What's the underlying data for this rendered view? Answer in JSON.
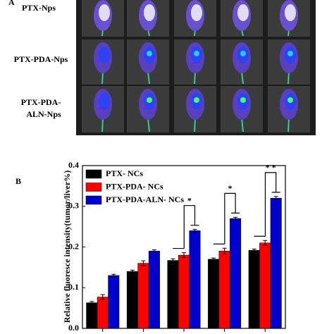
{
  "panel_a": {
    "label": "A",
    "rows": [
      "PTX-Nps",
      "PTX-PDA-Nps",
      [
        "PTX-PDA-",
        "ALN-Nps"
      ]
    ]
  },
  "chart_data": {
    "type": "bar",
    "panel_label": "B",
    "y_label": "Relative fluoresce intensity(tumor/liver%)",
    "categories": [
      null,
      null,
      null,
      null,
      null
    ],
    "series": [
      {
        "name": "PTX- NCs",
        "color": "#000000",
        "values": [
          0.063,
          0.14,
          0.167,
          0.17,
          0.192
        ],
        "errors": [
          0.003,
          0.003,
          0.004,
          0.003,
          0.003
        ]
      },
      {
        "name": "PTX-PDA- NCs",
        "color": "#ff0000",
        "values": [
          0.077,
          0.16,
          0.18,
          0.19,
          0.21
        ],
        "errors": [
          0.006,
          0.006,
          0.006,
          0.007,
          0.006
        ]
      },
      {
        "name": "PTX-PDA-ALN- NCs",
        "color": "#0000cc",
        "values": [
          0.13,
          0.19,
          0.24,
          0.27,
          0.32
        ],
        "errors": [
          0.003,
          0.003,
          0.003,
          0.003,
          0.004
        ]
      }
    ],
    "ylim": [
      0,
      0.4
    ],
    "yticks": [
      {
        "value": 0,
        "label": "0.0"
      },
      0.1,
      0.2,
      0.3,
      0.4
    ],
    "significance": [
      {
        "group": 2,
        "label": "*"
      },
      {
        "group": 3,
        "label": "*"
      },
      {
        "group": 4,
        "label": "* *"
      }
    ],
    "legend": "upper-left"
  }
}
